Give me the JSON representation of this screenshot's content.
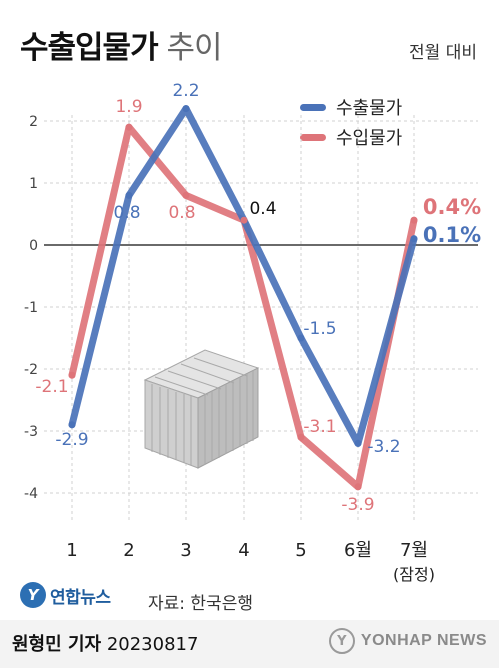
{
  "title": {
    "bold": "수출입물가",
    "light": "추이"
  },
  "unit_note": "전월 대비",
  "source": "자료: 한국은행",
  "logo_text": "연합뉴스",
  "credit": {
    "name": "원형민 기자",
    "date": "20230817"
  },
  "agency": "YONHAP NEWS",
  "colors": {
    "export": "#4a72b8",
    "import": "#de7479",
    "grid": "#d0d0d0",
    "zero": "#111111"
  },
  "chart_data": {
    "type": "line",
    "categories": [
      "1",
      "2",
      "3",
      "4",
      "5",
      "6월",
      "7월"
    ],
    "category_sublabels": [
      "",
      "",
      "",
      "",
      "",
      "",
      "(잠정)"
    ],
    "ylim": [
      -4,
      2.5
    ],
    "yticks": [
      2,
      1,
      0,
      -1,
      -2,
      -3,
      -4
    ],
    "ytick_labels": [
      "2",
      "1",
      "0",
      "-1",
      "-2",
      "-3",
      "-4"
    ],
    "series": [
      {
        "name": "수출물가",
        "values": [
          -2.9,
          0.8,
          2.2,
          0.4,
          -1.5,
          -3.2,
          0.1
        ],
        "labels": [
          "-2.9",
          "0.8",
          "2.2",
          "0.4",
          "-1.5",
          "-3.2",
          "0.1%"
        ]
      },
      {
        "name": "수입물가",
        "values": [
          -2.1,
          1.9,
          0.8,
          0.4,
          -3.1,
          -3.9,
          0.4
        ],
        "labels": [
          "-2.1",
          "1.9",
          "0.8",
          "",
          "-3.1",
          "-3.9",
          "0.4%"
        ]
      }
    ],
    "legend_position": "top-right",
    "grid": "horizontal dashed"
  }
}
